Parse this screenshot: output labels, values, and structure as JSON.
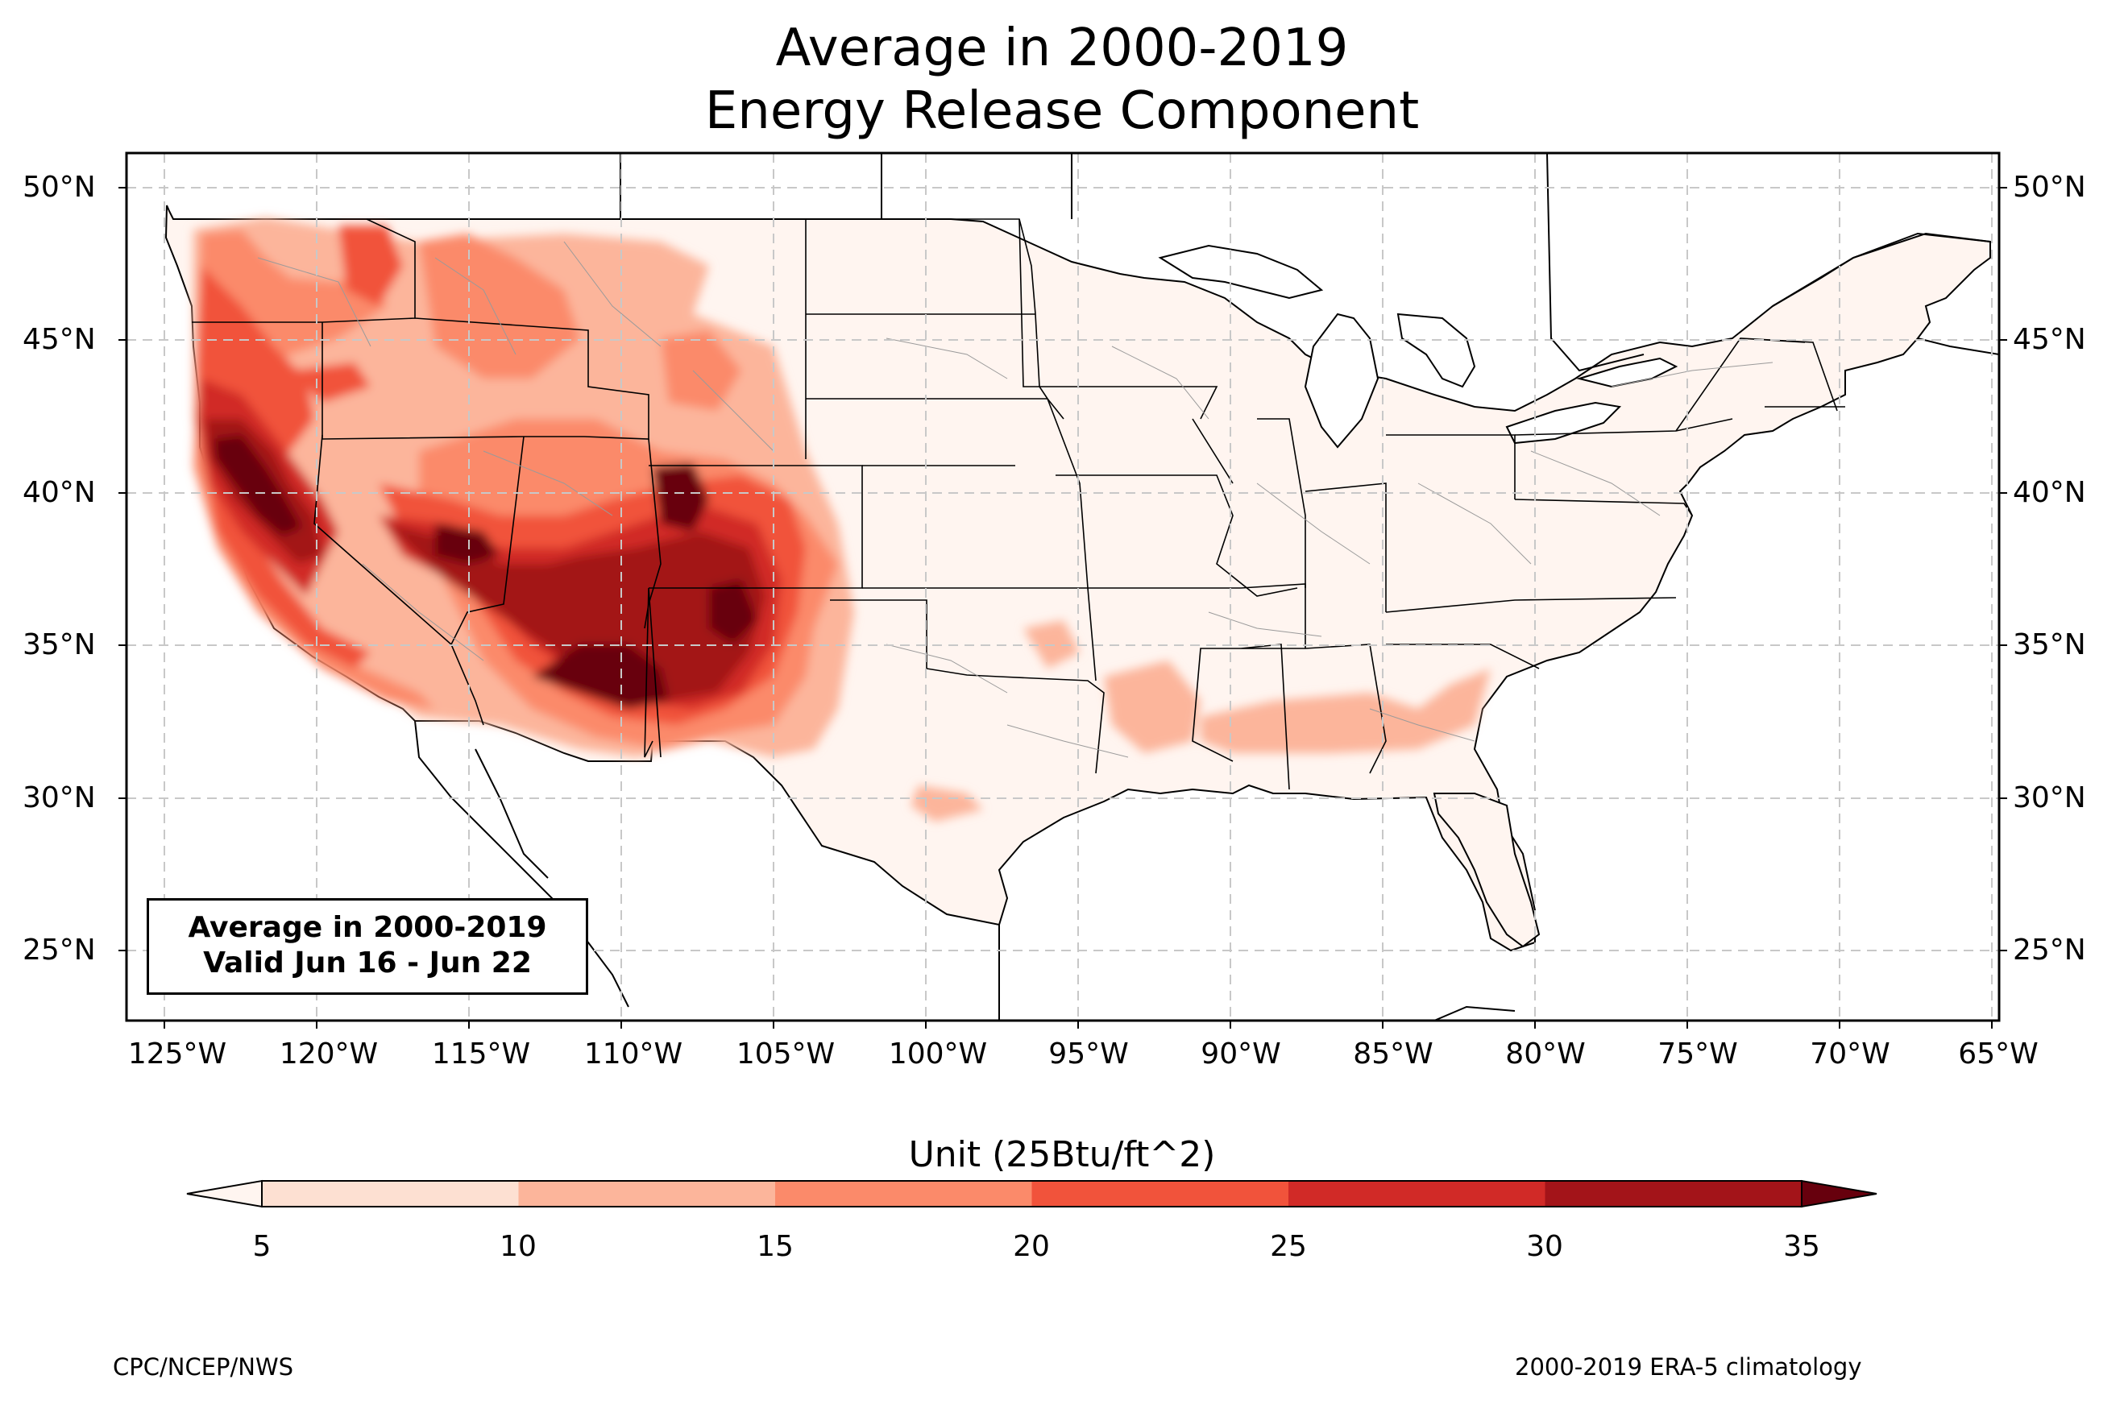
{
  "title": {
    "line1": "Average in 2000-2019",
    "line2": "Energy Release Component"
  },
  "map": {
    "region": "Contiguous United States",
    "projection": "PlateCarree",
    "extent_lon": [
      -126.3,
      -64.9
    ],
    "extent_lat": [
      22.8,
      51.2
    ],
    "gridlines": "dashed light gray",
    "lat_labels": [
      "50°N",
      "45°N",
      "40°N",
      "35°N",
      "30°N",
      "25°N"
    ],
    "lon_labels": [
      "125°W",
      "120°W",
      "115°W",
      "110°W",
      "105°W",
      "100°W",
      "95°W",
      "90°W",
      "85°W",
      "80°W",
      "75°W",
      "70°W",
      "65°W"
    ],
    "validity_box": {
      "line1": "Average in 2000-2019",
      "line2": "Valid Jun 16 - Jun 22"
    }
  },
  "colorbar": {
    "label": "Unit (25Btu/ft^2)",
    "ticks": [
      "5",
      "10",
      "15",
      "20",
      "25",
      "30",
      "35"
    ],
    "levels": [
      5,
      10,
      15,
      20,
      25,
      30,
      35
    ],
    "colors": [
      "#fde0d2",
      "#fcb59b",
      "#fb8a6a",
      "#f1533b",
      "#d12a27",
      "#a31419"
    ],
    "under_color": "#fff5f0",
    "over_color": "#67000d",
    "extend": "both"
  },
  "footer": {
    "left": "CPC/NCEP/NWS",
    "right": "2000-2019 ERA-5 climatology"
  }
}
